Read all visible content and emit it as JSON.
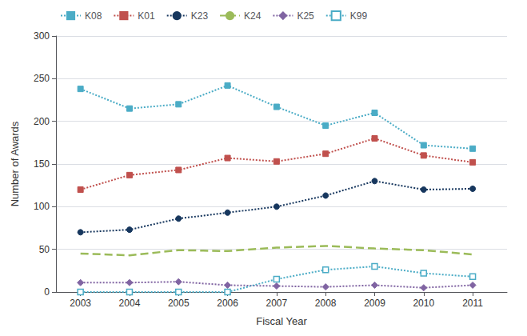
{
  "chart_data": {
    "type": "line",
    "xlabel": "Fiscal Year",
    "ylabel": "Number of Awards",
    "x": [
      2003,
      2004,
      2005,
      2006,
      2007,
      2008,
      2009,
      2010,
      2011
    ],
    "xlim": [
      2002.5,
      2011.7
    ],
    "xticks": [
      2003,
      2004,
      2005,
      2006,
      2007,
      2008,
      2009,
      2010,
      2011
    ],
    "ylim": [
      0,
      300
    ],
    "yticks": [
      0,
      50,
      100,
      150,
      200,
      250,
      300
    ],
    "grid": true,
    "legend": "upper left",
    "series": [
      {
        "name": "K08",
        "color": "#4BACC6",
        "marker": "square",
        "line_style": "dotted",
        "values": [
          238,
          215,
          220,
          242,
          217,
          195,
          210,
          172,
          168
        ]
      },
      {
        "name": "K01",
        "color": "#C0504D",
        "marker": "square",
        "line_style": "dotted",
        "values": [
          120,
          137,
          143,
          157,
          153,
          162,
          180,
          160,
          152
        ]
      },
      {
        "name": "K23",
        "color": "#17375E",
        "marker": "circle",
        "line_style": "dotted",
        "values": [
          70,
          73,
          86,
          93,
          100,
          113,
          130,
          120,
          121
        ]
      },
      {
        "name": "K24",
        "color": "#9BBB59",
        "marker": "none",
        "line_style": "dashed",
        "values": [
          45,
          43,
          49,
          48,
          52,
          54,
          51,
          49,
          44
        ]
      },
      {
        "name": "K25",
        "color": "#8064A2",
        "marker": "diamond",
        "line_style": "dotted",
        "values": [
          11,
          11,
          12,
          8,
          7,
          6,
          8,
          5,
          8
        ]
      },
      {
        "name": "K99",
        "color": "#4BACC6",
        "marker": "open_square",
        "line_style": "dotted",
        "values": [
          0,
          0,
          0,
          0,
          15,
          26,
          30,
          22,
          18
        ]
      }
    ]
  }
}
